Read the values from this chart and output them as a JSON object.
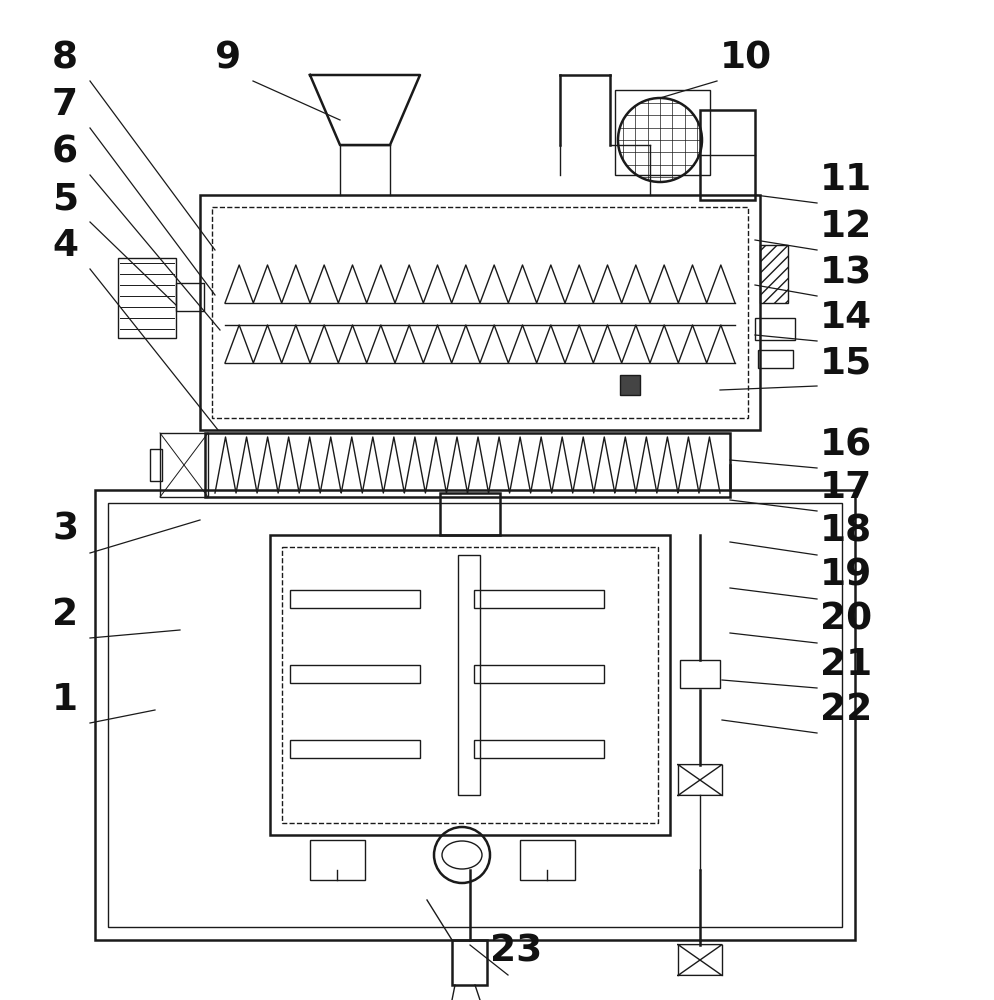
{
  "bg_color": "#ffffff",
  "line_color": "#1a1a1a",
  "lw": 1.8,
  "tlw": 1.0,
  "flw": 0.7
}
